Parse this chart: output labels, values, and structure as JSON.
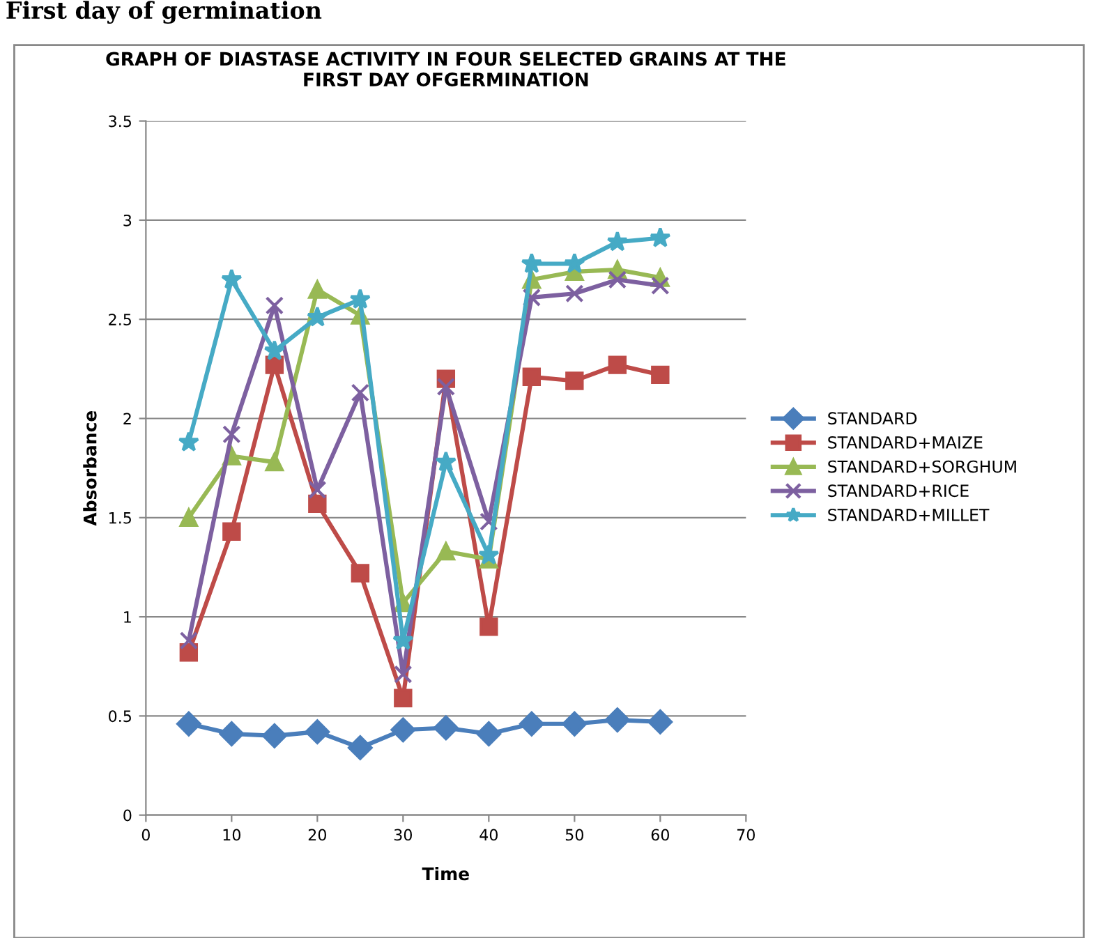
{
  "chart_data": {
    "type": "line",
    "title": "GRAPH OF DIASTASE ACTIVITY IN FOUR SELECTED GRAINS AT THE\nFIRST DAY OFGERMINATION",
    "xlabel": "Time",
    "ylabel": "Absorbance",
    "annotations": [
      "First day of germination"
    ],
    "x": [
      5,
      10,
      15,
      20,
      25,
      30,
      35,
      40,
      45,
      50,
      55,
      60
    ],
    "series": [
      {
        "name": "STANDARD",
        "color": "#4a7ebb",
        "marker": "diamond",
        "values": [
          0.46,
          0.41,
          0.4,
          0.42,
          0.34,
          0.43,
          0.44,
          0.41,
          0.46,
          0.46,
          0.48,
          0.47
        ]
      },
      {
        "name": "STANDARD+MAIZE",
        "color": "#be4b48",
        "marker": "square",
        "values": [
          0.82,
          1.43,
          2.27,
          1.57,
          1.22,
          0.59,
          2.2,
          0.95,
          2.21,
          2.19,
          2.27,
          2.22
        ]
      },
      {
        "name": "STANDARD+SORGHUM",
        "color": "#98b954",
        "marker": "triangle",
        "values": [
          1.5,
          1.81,
          1.78,
          2.65,
          2.52,
          1.07,
          1.33,
          1.29,
          2.7,
          2.74,
          2.75,
          2.71
        ]
      },
      {
        "name": "STANDARD+RICE",
        "color": "#7d60a0",
        "marker": "cross",
        "values": [
          0.88,
          1.92,
          2.57,
          1.64,
          2.13,
          0.71,
          2.16,
          1.48,
          2.61,
          2.63,
          2.7,
          2.67
        ]
      },
      {
        "name": "STANDARD+MILLET",
        "color": "#46aac5",
        "marker": "star",
        "values": [
          1.88,
          2.7,
          2.34,
          2.51,
          2.6,
          0.88,
          1.78,
          1.31,
          2.78,
          2.78,
          2.89,
          2.91
        ]
      }
    ],
    "xlim": [
      0,
      70
    ],
    "xticks": [
      0,
      10,
      20,
      30,
      40,
      50,
      60,
      70
    ],
    "ylim": [
      0,
      3.5
    ],
    "yticks": [
      0,
      0.5,
      1,
      1.5,
      2,
      2.5,
      3,
      3.5
    ],
    "grid": "y",
    "legend": "right",
    "line_style": "solid"
  }
}
